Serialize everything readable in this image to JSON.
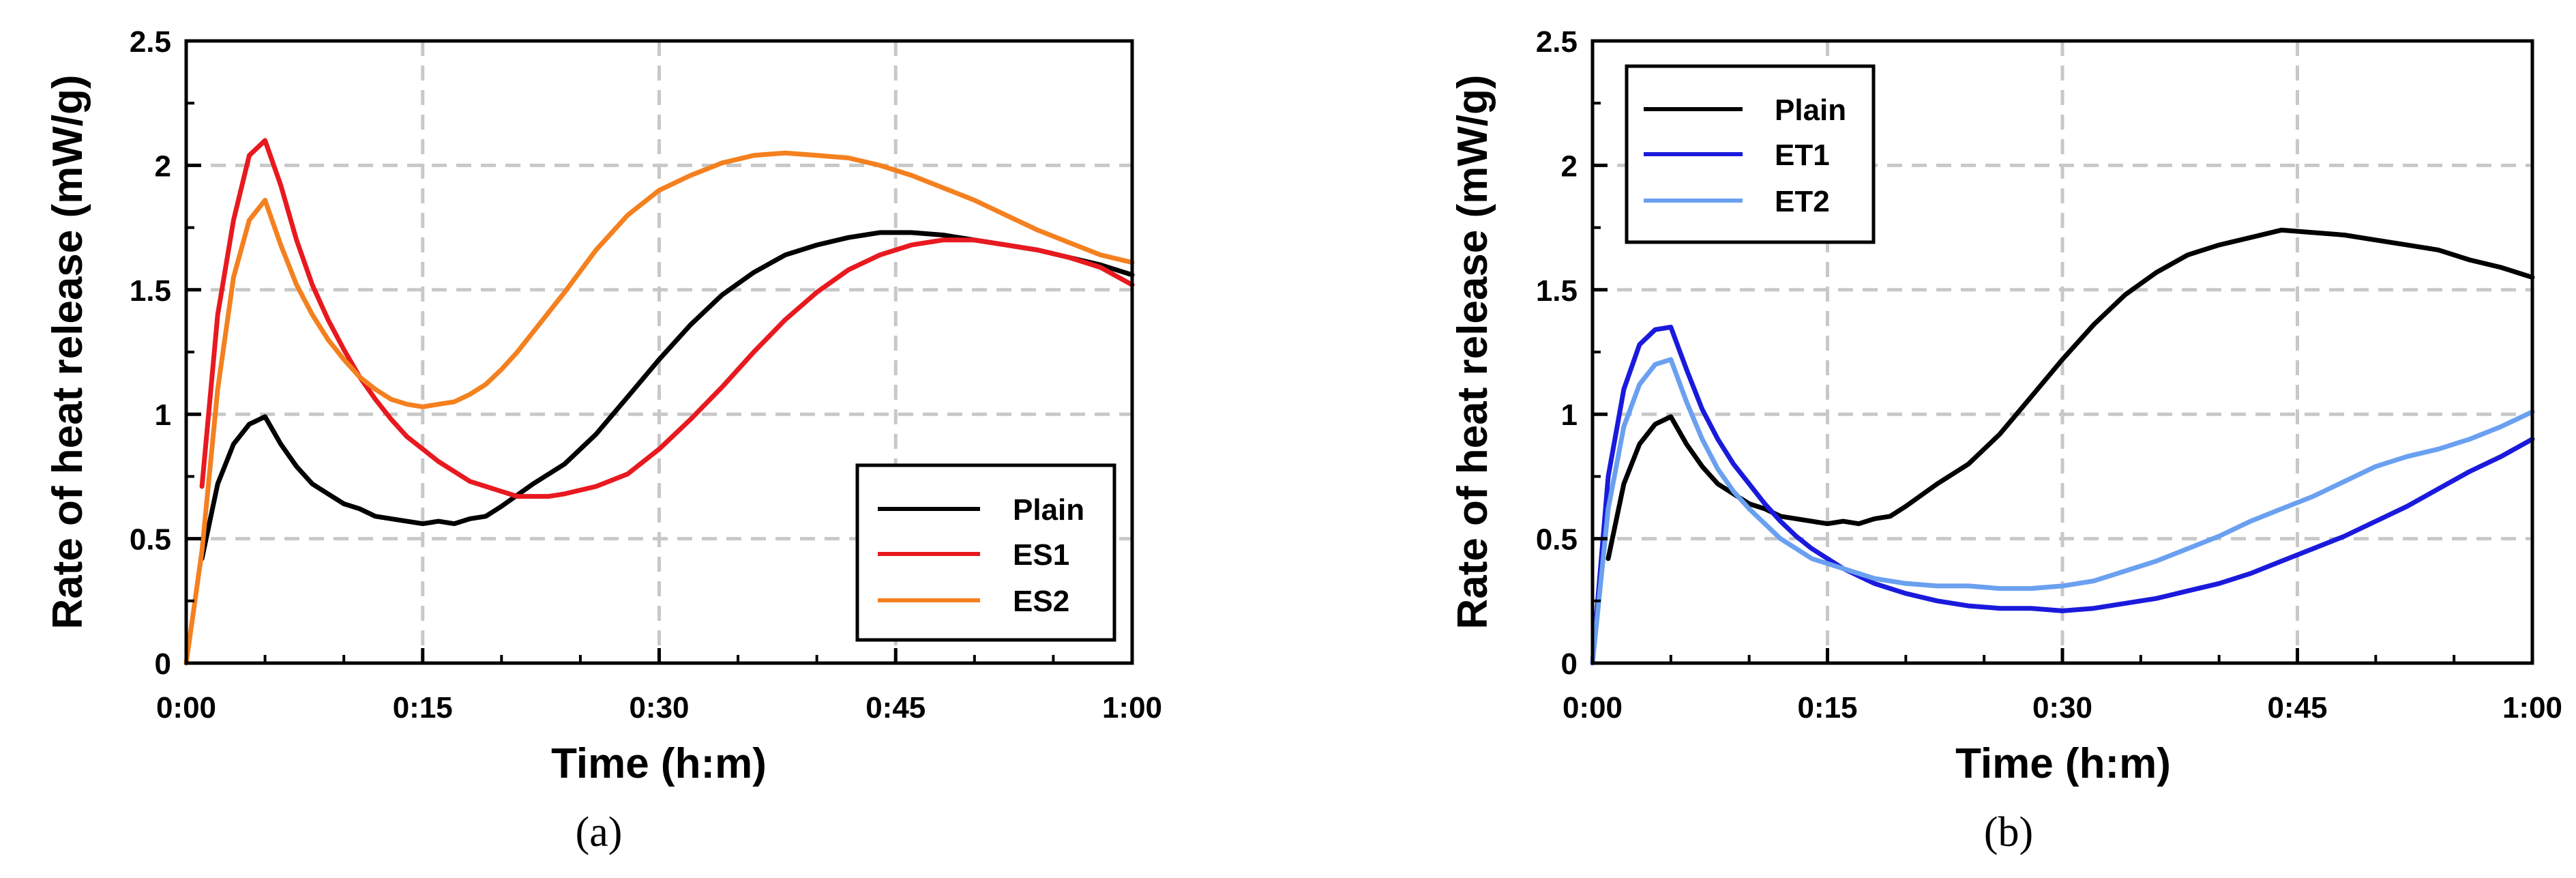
{
  "chart_data": [
    {
      "type": "line",
      "caption": "(a)",
      "xlabel": "Time (h:m)",
      "ylabel": "Rate of heat release (mW/g)",
      "xlim": [
        0,
        60
      ],
      "ylim": [
        0,
        2.5
      ],
      "xticks": [
        0,
        15,
        30,
        45,
        60
      ],
      "xtick_labels": [
        "0:00",
        "0:15",
        "0:30",
        "0:45",
        "1:00"
      ],
      "yticks": [
        0,
        0.5,
        1,
        1.5,
        2,
        2.5
      ],
      "ytick_labels": [
        "0",
        "0.5",
        "1",
        "1.5",
        "2",
        "2.5"
      ],
      "grid": true,
      "legend_position": "bottom-right",
      "series": [
        {
          "name": "Plain",
          "color": "#000000",
          "x": [
            1,
            2,
            3,
            4,
            5,
            6,
            7,
            8,
            9,
            10,
            11,
            12,
            13,
            14,
            15,
            16,
            17,
            18,
            19,
            20,
            22,
            24,
            26,
            28,
            30,
            32,
            34,
            36,
            38,
            40,
            42,
            44,
            46,
            48,
            50,
            52,
            54,
            56,
            58,
            60
          ],
          "y": [
            0.42,
            0.72,
            0.88,
            0.96,
            0.99,
            0.88,
            0.79,
            0.72,
            0.68,
            0.64,
            0.62,
            0.59,
            0.58,
            0.57,
            0.56,
            0.57,
            0.56,
            0.58,
            0.59,
            0.63,
            0.72,
            0.8,
            0.92,
            1.07,
            1.22,
            1.36,
            1.48,
            1.57,
            1.64,
            1.68,
            1.71,
            1.73,
            1.73,
            1.72,
            1.7,
            1.68,
            1.66,
            1.63,
            1.6,
            1.56
          ]
        },
        {
          "name": "ES1",
          "color": "#e8191f",
          "x": [
            1,
            2,
            3,
            4,
            5,
            6,
            7,
            8,
            9,
            10,
            11,
            12,
            13,
            14,
            15,
            16,
            17,
            18,
            19,
            20,
            21,
            22,
            23,
            24,
            26,
            28,
            30,
            32,
            34,
            36,
            38,
            40,
            42,
            44,
            46,
            48,
            50,
            52,
            54,
            56,
            58,
            60
          ],
          "y": [
            0.71,
            1.4,
            1.78,
            2.04,
            2.1,
            1.92,
            1.7,
            1.52,
            1.38,
            1.26,
            1.15,
            1.06,
            0.98,
            0.91,
            0.86,
            0.81,
            0.77,
            0.73,
            0.71,
            0.69,
            0.67,
            0.67,
            0.67,
            0.68,
            0.71,
            0.76,
            0.86,
            0.98,
            1.11,
            1.25,
            1.38,
            1.49,
            1.58,
            1.64,
            1.68,
            1.7,
            1.7,
            1.68,
            1.66,
            1.63,
            1.59,
            1.52
          ]
        },
        {
          "name": "ES2",
          "color": "#f4801f",
          "x": [
            0,
            1,
            2,
            3,
            4,
            5,
            6,
            7,
            8,
            9,
            10,
            11,
            12,
            13,
            14,
            15,
            16,
            17,
            18,
            19,
            20,
            21,
            22,
            23,
            24,
            26,
            28,
            30,
            32,
            34,
            36,
            38,
            40,
            42,
            44,
            46,
            48,
            50,
            52,
            54,
            56,
            58,
            60
          ],
          "y": [
            0.0,
            0.45,
            1.1,
            1.55,
            1.78,
            1.86,
            1.68,
            1.52,
            1.4,
            1.3,
            1.22,
            1.15,
            1.1,
            1.06,
            1.04,
            1.03,
            1.04,
            1.05,
            1.08,
            1.12,
            1.18,
            1.25,
            1.33,
            1.41,
            1.49,
            1.66,
            1.8,
            1.9,
            1.96,
            2.01,
            2.04,
            2.05,
            2.04,
            2.03,
            2.0,
            1.96,
            1.91,
            1.86,
            1.8,
            1.74,
            1.69,
            1.64,
            1.61
          ]
        }
      ]
    },
    {
      "type": "line",
      "caption": "(b)",
      "xlabel": "Time (h:m)",
      "ylabel": "Rate of heat release (mW/g)",
      "xlim": [
        0,
        60
      ],
      "ylim": [
        0,
        2.5
      ],
      "xticks": [
        0,
        15,
        30,
        45,
        60
      ],
      "xtick_labels": [
        "0:00",
        "0:15",
        "0:30",
        "0:45",
        "1:00"
      ],
      "yticks": [
        0,
        0.5,
        1,
        1.5,
        2,
        2.5
      ],
      "ytick_labels": [
        "0",
        "0.5",
        "1",
        "1.5",
        "2",
        "2.5"
      ],
      "grid": true,
      "legend_position": "top-left",
      "series": [
        {
          "name": "Plain",
          "color": "#000000",
          "x": [
            1,
            2,
            3,
            4,
            5,
            6,
            7,
            8,
            9,
            10,
            11,
            12,
            13,
            14,
            15,
            16,
            17,
            18,
            19,
            20,
            22,
            24,
            26,
            28,
            30,
            32,
            34,
            36,
            38,
            40,
            42,
            44,
            46,
            48,
            50,
            52,
            54,
            56,
            58,
            60
          ],
          "y": [
            0.42,
            0.72,
            0.88,
            0.96,
            0.99,
            0.88,
            0.79,
            0.72,
            0.68,
            0.64,
            0.62,
            0.59,
            0.58,
            0.57,
            0.56,
            0.57,
            0.56,
            0.58,
            0.59,
            0.63,
            0.72,
            0.8,
            0.92,
            1.07,
            1.22,
            1.36,
            1.48,
            1.57,
            1.64,
            1.68,
            1.71,
            1.74,
            1.73,
            1.72,
            1.7,
            1.68,
            1.66,
            1.62,
            1.59,
            1.55
          ]
        },
        {
          "name": "ET1",
          "color": "#1a1adc",
          "x": [
            0,
            1,
            2,
            3,
            4,
            5,
            6,
            7,
            8,
            9,
            10,
            11,
            12,
            13,
            14,
            15,
            16,
            18,
            20,
            22,
            24,
            26,
            28,
            30,
            32,
            34,
            36,
            38,
            40,
            42,
            44,
            46,
            48,
            50,
            52,
            54,
            56,
            58,
            60
          ],
          "y": [
            0.0,
            0.75,
            1.1,
            1.28,
            1.34,
            1.35,
            1.18,
            1.02,
            0.9,
            0.8,
            0.72,
            0.64,
            0.57,
            0.51,
            0.46,
            0.42,
            0.38,
            0.32,
            0.28,
            0.25,
            0.23,
            0.22,
            0.22,
            0.21,
            0.22,
            0.24,
            0.26,
            0.29,
            0.32,
            0.36,
            0.41,
            0.46,
            0.51,
            0.57,
            0.63,
            0.7,
            0.77,
            0.83,
            0.9
          ]
        },
        {
          "name": "ET2",
          "color": "#6aa0f0",
          "x": [
            0,
            1,
            2,
            3,
            4,
            5,
            6,
            7,
            8,
            9,
            10,
            11,
            12,
            13,
            14,
            15,
            16,
            18,
            20,
            22,
            24,
            26,
            28,
            30,
            32,
            34,
            36,
            38,
            40,
            42,
            44,
            46,
            48,
            50,
            52,
            54,
            56,
            58,
            60
          ],
          "y": [
            0.0,
            0.62,
            0.95,
            1.12,
            1.2,
            1.22,
            1.05,
            0.9,
            0.78,
            0.69,
            0.62,
            0.56,
            0.5,
            0.46,
            0.42,
            0.4,
            0.38,
            0.34,
            0.32,
            0.31,
            0.31,
            0.3,
            0.3,
            0.31,
            0.33,
            0.37,
            0.41,
            0.46,
            0.51,
            0.57,
            0.62,
            0.67,
            0.73,
            0.79,
            0.83,
            0.86,
            0.9,
            0.95,
            1.01
          ]
        }
      ]
    }
  ]
}
